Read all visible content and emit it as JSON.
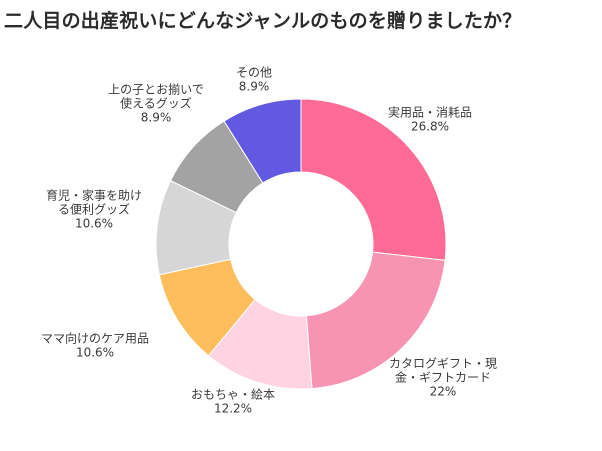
{
  "title": "二人目の出産祝いにどんなジャンルのものを贈りましたか？",
  "chart_data": {
    "type": "pie",
    "donut": true,
    "title": "二人目の出産祝いにどんなジャンルのものを贈りましたか？",
    "slices": [
      {
        "label": [
          "実用品・消耗品"
        ],
        "value": 26.8,
        "display": "26.8%",
        "color": "#ff6b96"
      },
      {
        "label": [
          "カタログギフト・現",
          "金・ギフトカード"
        ],
        "value": 22,
        "display": "22%",
        "color": "#f894b3"
      },
      {
        "label": [
          "おもちゃ・絵本"
        ],
        "value": 12.2,
        "display": "12.2%",
        "color": "#ffd3e1"
      },
      {
        "label": [
          "ママ向けのケア用品"
        ],
        "value": 10.6,
        "display": "10.6%",
        "color": "#ffbd5c"
      },
      {
        "label": [
          "育児・家事を助け",
          "る便利グッズ"
        ],
        "value": 10.6,
        "display": "10.6%",
        "color": "#d6d6d6"
      },
      {
        "label": [
          "上の子とお揃いで",
          "使えるグッズ"
        ],
        "value": 8.9,
        "display": "8.9%",
        "color": "#a3a3a3"
      },
      {
        "label": [
          "その他"
        ],
        "value": 8.9,
        "display": "8.9%",
        "color": "#6159e0"
      }
    ],
    "legend": "none"
  }
}
